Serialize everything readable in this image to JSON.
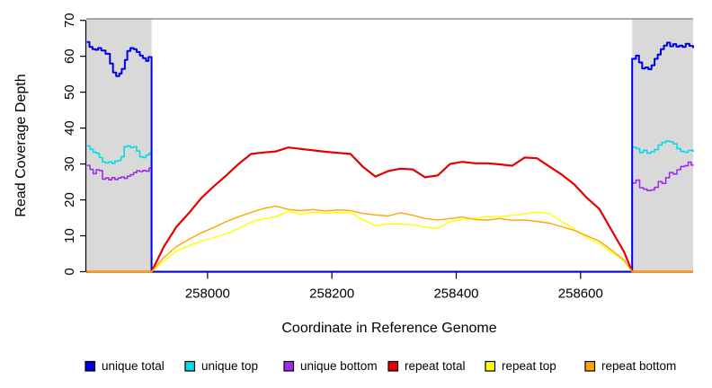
{
  "figure": {
    "background": "#FFFFFF",
    "plot_top_border_color": "#909090",
    "axis_color": "#000000",
    "shade_color": "#D9D9D9"
  },
  "chart_data": {
    "type": "line",
    "title": "",
    "xlabel": "Coordinate in Reference Genome",
    "ylabel": "Read Coverage Depth",
    "xlim": [
      257805,
      258781
    ],
    "ylim": [
      0,
      70
    ],
    "xticks": [
      258000,
      258200,
      258400,
      258600
    ],
    "yticks": [
      0,
      10,
      20,
      30,
      40,
      50,
      60,
      70
    ],
    "grid": false,
    "legend_position": "bottom",
    "shaded_x_regions": [
      [
        257805,
        257910
      ],
      [
        258683,
        258781
      ]
    ],
    "draw_order": [
      1,
      2,
      0,
      3,
      4,
      5
    ],
    "series": [
      {
        "name": "unique total",
        "color": "#0000E6",
        "width": 2,
        "mode": "step",
        "points": [
          [
            257806,
            64
          ],
          [
            257810,
            62.6
          ],
          [
            257815,
            62
          ],
          [
            257820,
            61.8
          ],
          [
            257824,
            62.3
          ],
          [
            257829,
            61.6
          ],
          [
            257836,
            60.7
          ],
          [
            257843,
            58
          ],
          [
            257848,
            55.5
          ],
          [
            257853,
            54.5
          ],
          [
            257858,
            55.2
          ],
          [
            257862,
            56.5
          ],
          [
            257867,
            59
          ],
          [
            257871,
            61.5
          ],
          [
            257876,
            62.3
          ],
          [
            257881,
            62
          ],
          [
            257886,
            61.2
          ],
          [
            257891,
            60.2
          ],
          [
            257896,
            59.5
          ],
          [
            257901,
            58.7
          ],
          [
            257905,
            59.8
          ],
          [
            257909,
            59.8
          ],
          [
            257910,
            0
          ],
          [
            258682,
            0
          ],
          [
            258683,
            59.3
          ],
          [
            258689,
            60.2
          ],
          [
            258694,
            58.3
          ],
          [
            258699,
            56.6
          ],
          [
            258704,
            56.9
          ],
          [
            258709,
            56.4
          ],
          [
            258714,
            57.5
          ],
          [
            258719,
            59.3
          ],
          [
            258724,
            60.5
          ],
          [
            258729,
            62
          ],
          [
            258734,
            63
          ],
          [
            258739,
            63.8
          ],
          [
            258744,
            62.8
          ],
          [
            258749,
            63.4
          ],
          [
            258754,
            62.7
          ],
          [
            258759,
            63
          ],
          [
            258764,
            62.6
          ],
          [
            258769,
            63.5
          ],
          [
            258775,
            62.9
          ],
          [
            258781,
            62.3
          ]
        ]
      },
      {
        "name": "unique top",
        "color": "#00DDE8",
        "width": 1.6,
        "mode": "step",
        "points": [
          [
            257806,
            35
          ],
          [
            257811,
            34.1
          ],
          [
            257816,
            33.3
          ],
          [
            257821,
            33
          ],
          [
            257826,
            31.8
          ],
          [
            257831,
            30.6
          ],
          [
            257836,
            30.3
          ],
          [
            257841,
            30.6
          ],
          [
            257846,
            30.2
          ],
          [
            257851,
            30.8
          ],
          [
            257856,
            31
          ],
          [
            257861,
            32
          ],
          [
            257866,
            34.8
          ],
          [
            257871,
            35
          ],
          [
            257876,
            34.6
          ],
          [
            257881,
            34.8
          ],
          [
            257886,
            33.6
          ],
          [
            257891,
            32
          ],
          [
            257896,
            31.8
          ],
          [
            257901,
            32.5
          ],
          [
            257906,
            33
          ],
          [
            257909,
            33
          ],
          [
            257910,
            0
          ],
          [
            258682,
            0
          ],
          [
            258683,
            34.7
          ],
          [
            258689,
            34.3
          ],
          [
            258695,
            33.2
          ],
          [
            258701,
            33.8
          ],
          [
            258707,
            33
          ],
          [
            258713,
            33.4
          ],
          [
            258719,
            34
          ],
          [
            258725,
            35.3
          ],
          [
            258731,
            36
          ],
          [
            258737,
            36.4
          ],
          [
            258743,
            36.2
          ],
          [
            258749,
            35.6
          ],
          [
            258755,
            34.3
          ],
          [
            258761,
            33.5
          ],
          [
            258767,
            33.3
          ],
          [
            258773,
            33.8
          ],
          [
            258781,
            33.4
          ]
        ]
      },
      {
        "name": "unique bottom",
        "color": "#A02CF0",
        "width": 1.6,
        "mode": "step",
        "points": [
          [
            257806,
            29.6
          ],
          [
            257811,
            28.5
          ],
          [
            257816,
            27.3
          ],
          [
            257821,
            28.4
          ],
          [
            257826,
            28.2
          ],
          [
            257831,
            25.8
          ],
          [
            257836,
            26.1
          ],
          [
            257841,
            25.6
          ],
          [
            257846,
            26.2
          ],
          [
            257851,
            25.7
          ],
          [
            257856,
            26.1
          ],
          [
            257861,
            26.4
          ],
          [
            257866,
            26
          ],
          [
            257871,
            26.6
          ],
          [
            257876,
            27
          ],
          [
            257881,
            27.6
          ],
          [
            257886,
            28.1
          ],
          [
            257891,
            27.9
          ],
          [
            257896,
            28.2
          ],
          [
            257901,
            28
          ],
          [
            257906,
            28.9
          ],
          [
            257909,
            28.9
          ],
          [
            257910,
            0
          ],
          [
            258682,
            0
          ],
          [
            258683,
            24.7
          ],
          [
            258689,
            25.5
          ],
          [
            258695,
            23.4
          ],
          [
            258701,
            23
          ],
          [
            258707,
            22.6
          ],
          [
            258713,
            22.8
          ],
          [
            258719,
            23.5
          ],
          [
            258725,
            25.1
          ],
          [
            258731,
            24.6
          ],
          [
            258737,
            26.2
          ],
          [
            258743,
            27.6
          ],
          [
            258749,
            27.2
          ],
          [
            258755,
            28.4
          ],
          [
            258761,
            29.3
          ],
          [
            258767,
            29.5
          ],
          [
            258773,
            30.5
          ],
          [
            258778,
            29.7
          ],
          [
            258781,
            29.8
          ]
        ]
      },
      {
        "name": "repeat total",
        "color": "#E60000",
        "width": 2.2,
        "mode": "linear",
        "points": [
          [
            257806,
            0
          ],
          [
            257909,
            0
          ],
          [
            257910,
            0
          ],
          [
            257930,
            7
          ],
          [
            257950,
            12.5
          ],
          [
            257970,
            16.3
          ],
          [
            257990,
            20.5
          ],
          [
            258010,
            23.8
          ],
          [
            258030,
            26.8
          ],
          [
            258050,
            30
          ],
          [
            258070,
            32.8
          ],
          [
            258090,
            33.2
          ],
          [
            258110,
            33.5
          ],
          [
            258130,
            34.6
          ],
          [
            258150,
            34.2
          ],
          [
            258170,
            33.8
          ],
          [
            258190,
            33.4
          ],
          [
            258210,
            33.1
          ],
          [
            258230,
            32.8
          ],
          [
            258250,
            29.2
          ],
          [
            258270,
            26.5
          ],
          [
            258290,
            28
          ],
          [
            258310,
            28.7
          ],
          [
            258330,
            28.5
          ],
          [
            258350,
            26.3
          ],
          [
            258370,
            26.8
          ],
          [
            258390,
            30
          ],
          [
            258410,
            30.6
          ],
          [
            258430,
            30.2
          ],
          [
            258450,
            30.2
          ],
          [
            258470,
            29.9
          ],
          [
            258490,
            29.5
          ],
          [
            258510,
            31.8
          ],
          [
            258530,
            31.6
          ],
          [
            258550,
            29.3
          ],
          [
            258570,
            27
          ],
          [
            258590,
            24.3
          ],
          [
            258610,
            20.6
          ],
          [
            258630,
            17.5
          ],
          [
            258650,
            11.5
          ],
          [
            258670,
            5.5
          ],
          [
            258683,
            0
          ],
          [
            258684,
            0
          ],
          [
            258781,
            0
          ]
        ]
      },
      {
        "name": "repeat top",
        "color": "#FFFF00",
        "width": 1.4,
        "mode": "linear",
        "points": [
          [
            257806,
            0
          ],
          [
            257909,
            0
          ],
          [
            257910,
            0
          ],
          [
            257930,
            3
          ],
          [
            257950,
            5.8
          ],
          [
            257970,
            7.2
          ],
          [
            257990,
            8.5
          ],
          [
            258010,
            9.5
          ],
          [
            258030,
            10.5
          ],
          [
            258050,
            12
          ],
          [
            258070,
            13.8
          ],
          [
            258090,
            14.7
          ],
          [
            258110,
            15.3
          ],
          [
            258130,
            16.8
          ],
          [
            258150,
            16
          ],
          [
            258170,
            16.5
          ],
          [
            258190,
            16.3
          ],
          [
            258210,
            16.5
          ],
          [
            258230,
            16.4
          ],
          [
            258250,
            14.5
          ],
          [
            258270,
            12.8
          ],
          [
            258290,
            13.3
          ],
          [
            258310,
            13.3
          ],
          [
            258330,
            13.1
          ],
          [
            258350,
            12.4
          ],
          [
            258370,
            12
          ],
          [
            258390,
            14
          ],
          [
            258410,
            14.5
          ],
          [
            258430,
            14.9
          ],
          [
            258450,
            15.3
          ],
          [
            258470,
            15.3
          ],
          [
            258490,
            15.7
          ],
          [
            258510,
            16.1
          ],
          [
            258530,
            16.6
          ],
          [
            258550,
            16.2
          ],
          [
            258570,
            13.9
          ],
          [
            258590,
            11.9
          ],
          [
            258610,
            9.4
          ],
          [
            258630,
            7.8
          ],
          [
            258650,
            5.4
          ],
          [
            258670,
            3
          ],
          [
            258683,
            0
          ],
          [
            258684,
            0
          ],
          [
            258781,
            0
          ]
        ]
      },
      {
        "name": "repeat bottom",
        "color": "#FFA500",
        "width": 1.4,
        "mode": "linear",
        "points": [
          [
            257806,
            0
          ],
          [
            257909,
            0
          ],
          [
            257910,
            0
          ],
          [
            257930,
            4
          ],
          [
            257950,
            7
          ],
          [
            257970,
            9
          ],
          [
            257990,
            10.8
          ],
          [
            258010,
            12.3
          ],
          [
            258030,
            13.9
          ],
          [
            258050,
            15.3
          ],
          [
            258070,
            16.5
          ],
          [
            258090,
            17.6
          ],
          [
            258110,
            18.3
          ],
          [
            258130,
            17.3
          ],
          [
            258150,
            17
          ],
          [
            258170,
            17.3
          ],
          [
            258190,
            16.9
          ],
          [
            258210,
            17.2
          ],
          [
            258230,
            17
          ],
          [
            258250,
            16.2
          ],
          [
            258270,
            15.8
          ],
          [
            258290,
            15.5
          ],
          [
            258310,
            16.4
          ],
          [
            258330,
            15.7
          ],
          [
            258350,
            14.8
          ],
          [
            258370,
            14.4
          ],
          [
            258390,
            14.8
          ],
          [
            258410,
            15.2
          ],
          [
            258430,
            14.5
          ],
          [
            258450,
            14.4
          ],
          [
            258470,
            14.8
          ],
          [
            258490,
            14.3
          ],
          [
            258510,
            14.4
          ],
          [
            258530,
            14
          ],
          [
            258550,
            13.5
          ],
          [
            258570,
            12.5
          ],
          [
            258590,
            11.5
          ],
          [
            258610,
            10
          ],
          [
            258630,
            8.5
          ],
          [
            258650,
            6
          ],
          [
            258670,
            3.2
          ],
          [
            258683,
            0
          ],
          [
            258684,
            0
          ],
          [
            258781,
            0
          ]
        ]
      }
    ]
  }
}
